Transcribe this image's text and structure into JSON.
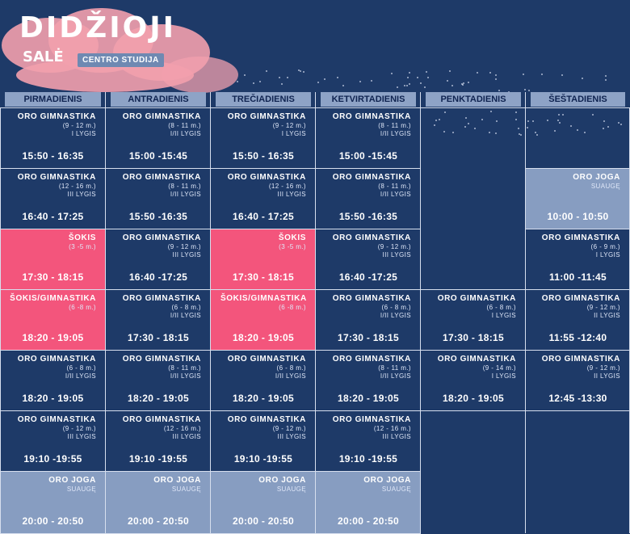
{
  "header": {
    "title": "DIDŽIOJI",
    "subtitle": "SALĖ",
    "studio": "CENTRO STUDIJA"
  },
  "days": [
    "PIRMADIENIS",
    "ANTRADIENIS",
    "TREČIADIENIS",
    "KETVIRTADIENIS",
    "PENKTADIENIS",
    "ŠEŠTADIENIS"
  ],
  "classes": [
    [
      {
        "name": "ORO GIMNASTIKA",
        "age": "(9 - 12 m.)",
        "level": "I LYGIS",
        "time": "15:50 - 16:35",
        "style": "dark"
      },
      {
        "name": "ORO GIMNASTIKA",
        "age": "(12 - 16 m.)",
        "level": "III LYGIS",
        "time": "16:40 - 17:25",
        "style": "dark"
      },
      {
        "name": "ŠOKIS",
        "age": "(3 -5 m.)",
        "level": "",
        "time": "17:30 - 18:15",
        "style": "pink"
      },
      {
        "name": "ŠOKIS/GIMNASTIKA",
        "age": "(6 -8 m.)",
        "level": "",
        "time": "18:20 - 19:05",
        "style": "pink"
      },
      {
        "name": "ORO GIMNASTIKA",
        "age": "(6 - 8 m.)",
        "level": "I/II LYGIS",
        "time": "18:20 - 19:05",
        "style": "dark"
      },
      {
        "name": "ORO GIMNASTIKA",
        "age": "(9 - 12 m.)",
        "level": "III LYGIS",
        "time": "19:10 -19:55",
        "style": "dark"
      },
      {
        "name": "ORO JOGA",
        "age": "SUAUGĘ",
        "level": "",
        "time": "20:00 - 20:50",
        "style": "light"
      }
    ],
    [
      {
        "name": "ORO GIMNASTIKA",
        "age": "(8 - 11 m.)",
        "level": "I/II LYGIS",
        "time": "15:00 -15:45",
        "style": "dark"
      },
      {
        "name": "ORO GIMNASTIKA",
        "age": "(8 - 11 m.)",
        "level": "I/II LYGIS",
        "time": "15:50 -16:35",
        "style": "dark"
      },
      {
        "name": "ORO GIMNASTIKA",
        "age": "(9 - 12 m.)",
        "level": "III LYGIS",
        "time": "16:40 -17:25",
        "style": "dark"
      },
      {
        "name": "ORO GIMNASTIKA",
        "age": "(6 - 8 m.)",
        "level": "I/II LYGIS",
        "time": "17:30 - 18:15",
        "style": "dark"
      },
      {
        "name": "ORO GIMNASTIKA",
        "age": "(8 - 11 m.)",
        "level": "I/II LYGIS",
        "time": "18:20 - 19:05",
        "style": "dark"
      },
      {
        "name": "ORO GIMNASTIKA",
        "age": "(12 - 16 m.)",
        "level": "III LYGIS",
        "time": "19:10 -19:55",
        "style": "dark"
      },
      {
        "name": "ORO JOGA",
        "age": "SUAUGĘ",
        "level": "",
        "time": "20:00 - 20:50",
        "style": "light"
      }
    ],
    [
      {
        "name": "ORO GIMNASTIKA",
        "age": "(9 - 12 m.)",
        "level": "I LYGIS",
        "time": "15:50 - 16:35",
        "style": "dark"
      },
      {
        "name": "ORO GIMNASTIKA",
        "age": "(12 - 16 m.)",
        "level": "III LYGIS",
        "time": "16:40 - 17:25",
        "style": "dark"
      },
      {
        "name": "ŠOKIS",
        "age": "(3 -5 m.)",
        "level": "",
        "time": "17:30 - 18:15",
        "style": "pink"
      },
      {
        "name": "ŠOKIS/GIMNASTIKA",
        "age": "(6 -8 m.)",
        "level": "",
        "time": "18:20 - 19:05",
        "style": "pink"
      },
      {
        "name": "ORO GIMNASTIKA",
        "age": "(6 - 8 m.)",
        "level": "I/II LYGIS",
        "time": "18:20 - 19:05",
        "style": "dark"
      },
      {
        "name": "ORO GIMNASTIKA",
        "age": "(9 - 12 m.)",
        "level": "III LYGIS",
        "time": "19:10 -19:55",
        "style": "dark"
      },
      {
        "name": "ORO JOGA",
        "age": "SUAUGĘ",
        "level": "",
        "time": "20:00 - 20:50",
        "style": "light"
      }
    ],
    [
      {
        "name": "ORO GIMNASTIKA",
        "age": "(8 - 11 m.)",
        "level": "I/II LYGIS",
        "time": "15:00 -15:45",
        "style": "dark"
      },
      {
        "name": "ORO GIMNASTIKA",
        "age": "(8 - 11 m.)",
        "level": "I/II LYGIS",
        "time": "15:50 -16:35",
        "style": "dark"
      },
      {
        "name": "ORO GIMNASTIKA",
        "age": "(9 - 12 m.)",
        "level": "III LYGIS",
        "time": "16:40 -17:25",
        "style": "dark"
      },
      {
        "name": "ORO GIMNASTIKA",
        "age": "(6 - 8 m.)",
        "level": "I/II LYGIS",
        "time": "17:30 - 18:15",
        "style": "dark"
      },
      {
        "name": "ORO GIMNASTIKA",
        "age": "(8 - 11 m.)",
        "level": "I/II LYGIS",
        "time": "18:20 - 19:05",
        "style": "dark"
      },
      {
        "name": "ORO GIMNASTIKA",
        "age": "(12 - 16 m.)",
        "level": "III LYGIS",
        "time": "19:10 -19:55",
        "style": "dark"
      },
      {
        "name": "ORO JOGA",
        "age": "SUAUGĘ",
        "level": "",
        "time": "20:00 - 20:50",
        "style": "light"
      }
    ],
    [
      {
        "name": "ORO GIMNASTIKA",
        "age": "(6 - 8 m.)",
        "level": "I LYGIS",
        "time": "17:30 - 18:15",
        "style": "dark"
      },
      {
        "name": "ORO GIMNASTIKA",
        "age": "(9 - 14 m.)",
        "level": "I LYGIS",
        "time": "18:20 - 19:05",
        "style": "dark"
      }
    ],
    [
      {
        "name": "ORO JOGA",
        "age": "SUAUGĘ",
        "level": "",
        "time": "10:00 - 10:50",
        "style": "light"
      },
      {
        "name": "ORO GIMNASTIKA",
        "age": "(6 - 9 m.)",
        "level": "I LYGIS",
        "time": "11:00 -11:45",
        "style": "dark"
      },
      {
        "name": "ORO GIMNASTIKA",
        "age": "(9 - 12 m.)",
        "level": "II LYGIS",
        "time": "11:55 -12:40",
        "style": "dark"
      },
      {
        "name": "ORO GIMNASTIKA",
        "age": "(9 - 12 m.)",
        "level": "II LYGIS",
        "time": "12:45 -13:30",
        "style": "dark"
      }
    ]
  ]
}
